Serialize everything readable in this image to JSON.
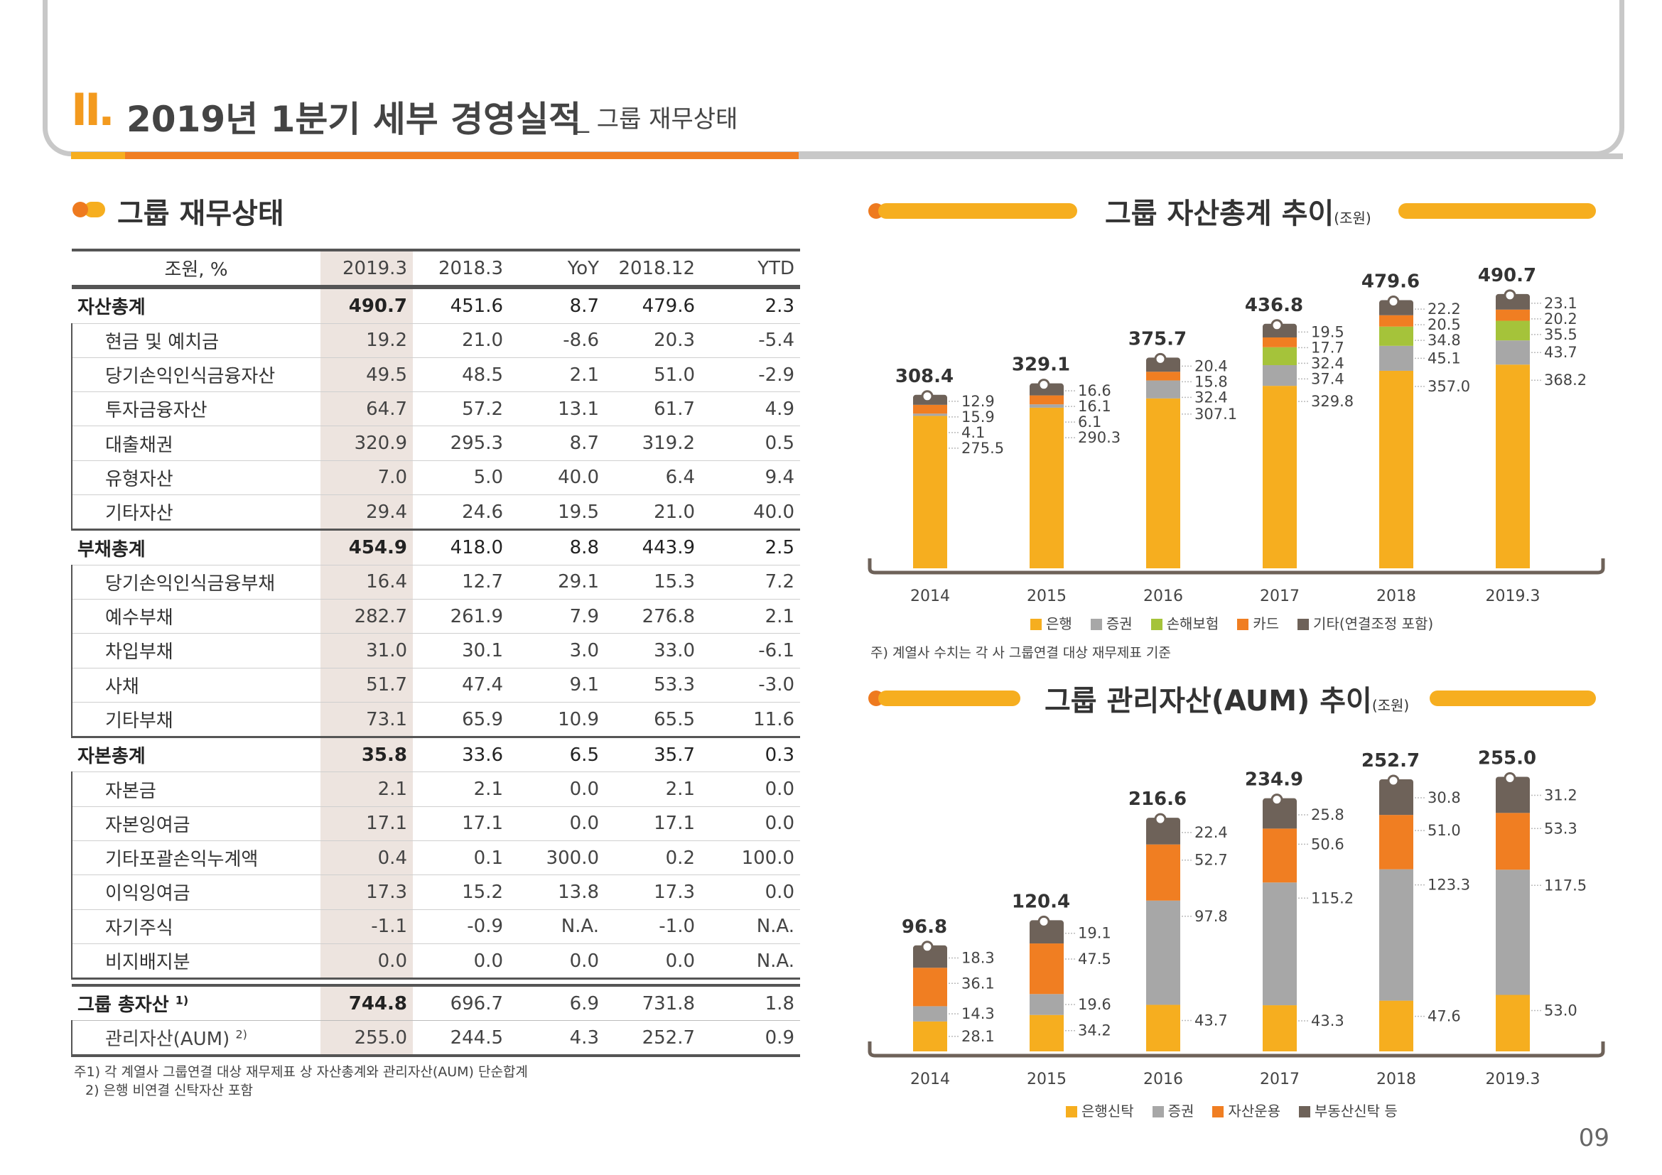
{
  "header": {
    "roman": "II.",
    "title": "2019년 1분기 세부 경영실적",
    "subtitle": "_ 그룹 재무상태",
    "page_number": "09"
  },
  "left": {
    "section_title": "그룹 재무상태",
    "columns": [
      "조원, %",
      "2019.3",
      "2018.3",
      "YoY",
      "2018.12",
      "YTD"
    ],
    "rows": [
      {
        "label": "자산총계",
        "group": true,
        "values": [
          "490.7",
          "451.6",
          "8.7",
          "479.6",
          "2.3"
        ]
      },
      {
        "label": "현금 및 예치금",
        "values": [
          "19.2",
          "21.0",
          "-8.6",
          "20.3",
          "-5.4"
        ]
      },
      {
        "label": "당기손익인식금융자산",
        "values": [
          "49.5",
          "48.5",
          "2.1",
          "51.0",
          "-2.9"
        ]
      },
      {
        "label": "투자금융자산",
        "values": [
          "64.7",
          "57.2",
          "13.1",
          "61.7",
          "4.9"
        ]
      },
      {
        "label": "대출채권",
        "values": [
          "320.9",
          "295.3",
          "8.7",
          "319.2",
          "0.5"
        ]
      },
      {
        "label": "유형자산",
        "values": [
          "7.0",
          "5.0",
          "40.0",
          "6.4",
          "9.4"
        ]
      },
      {
        "label": "기타자산",
        "values": [
          "29.4",
          "24.6",
          "19.5",
          "21.0",
          "40.0"
        ]
      },
      {
        "label": "부채총계",
        "group": true,
        "values": [
          "454.9",
          "418.0",
          "8.8",
          "443.9",
          "2.5"
        ]
      },
      {
        "label": "당기손익인식금융부채",
        "values": [
          "16.4",
          "12.7",
          "29.1",
          "15.3",
          "7.2"
        ]
      },
      {
        "label": "예수부채",
        "values": [
          "282.7",
          "261.9",
          "7.9",
          "276.8",
          "2.1"
        ]
      },
      {
        "label": "차입부채",
        "values": [
          "31.0",
          "30.1",
          "3.0",
          "33.0",
          "-6.1"
        ]
      },
      {
        "label": "사채",
        "values": [
          "51.7",
          "47.4",
          "9.1",
          "53.3",
          "-3.0"
        ]
      },
      {
        "label": "기타부채",
        "values": [
          "73.1",
          "65.9",
          "10.9",
          "65.5",
          "11.6"
        ]
      },
      {
        "label": "자본총계",
        "group": true,
        "values": [
          "35.8",
          "33.6",
          "6.5",
          "35.7",
          "0.3"
        ]
      },
      {
        "label": "자본금",
        "values": [
          "2.1",
          "2.1",
          "0.0",
          "2.1",
          "0.0"
        ]
      },
      {
        "label": "자본잉여금",
        "values": [
          "17.1",
          "17.1",
          "0.0",
          "17.1",
          "0.0"
        ]
      },
      {
        "label": "기타포괄손익누계액",
        "values": [
          "0.4",
          "0.1",
          "300.0",
          "0.2",
          "100.0"
        ]
      },
      {
        "label": "이익잉여금",
        "values": [
          "17.3",
          "15.2",
          "13.8",
          "17.3",
          "0.0"
        ]
      },
      {
        "label": "자기주식",
        "values": [
          "-1.1",
          "-0.9",
          "N.A.",
          "-1.0",
          "N.A."
        ]
      },
      {
        "label": "비지배지분",
        "values": [
          "0.0",
          "0.0",
          "0.0",
          "0.0",
          "N.A."
        ]
      }
    ],
    "totals": [
      {
        "label": "그룹 총자산",
        "sup": "1)",
        "values": [
          "744.8",
          "696.7",
          "6.9",
          "731.8",
          "1.8"
        ]
      },
      {
        "label": "관리자산(AUM)",
        "sup": "2)",
        "values": [
          "255.0",
          "244.5",
          "4.3",
          "252.7",
          "0.9"
        ]
      }
    ],
    "notes": [
      "주1) 각 계열사 그룹연결 대상 재무제표 상 자산총계와 관리자산(AUM) 단순합계",
      "2) 은행 비연결 신탁자산 포함"
    ]
  },
  "colors": {
    "bank": "#f6ae1f",
    "securities": "#a7a7a7",
    "insurance": "#a5c33a",
    "card": "#f07e22",
    "other": "#6e6259",
    "accent": "#f39a1e",
    "table_highlight": "#ede4df"
  },
  "chart_data": [
    {
      "type": "bar",
      "stacked": true,
      "title": "그룹 자산총계 추이",
      "unit": "(조원)",
      "categories": [
        "2014",
        "2015",
        "2016",
        "2017",
        "2018",
        "2019.3"
      ],
      "totals": [
        "308.4",
        "329.1",
        "375.7",
        "436.8",
        "479.6",
        "490.7"
      ],
      "series": [
        {
          "name": "은행",
          "color": "#f6ae1f",
          "values": [
            275.5,
            290.3,
            307.1,
            329.8,
            357.0,
            368.2
          ]
        },
        {
          "name": "증권",
          "color": "#a7a7a7",
          "values": [
            4.1,
            6.1,
            32.4,
            37.4,
            45.1,
            43.7
          ]
        },
        {
          "name": "손해보험",
          "color": "#a5c33a",
          "values": [
            0,
            0,
            0,
            32.4,
            34.8,
            35.5
          ]
        },
        {
          "name": "카드",
          "color": "#f07e22",
          "values": [
            15.9,
            16.1,
            15.8,
            17.7,
            20.5,
            20.2
          ]
        },
        {
          "name": "기타(연결조정 포함)",
          "color": "#6e6259",
          "values": [
            12.9,
            16.6,
            20.4,
            19.5,
            22.2,
            23.1
          ]
        }
      ],
      "labels": [
        [
          "12.9",
          "15.9",
          "4.1",
          "275.5"
        ],
        [
          "16.6",
          "16.1",
          "6.1",
          "290.3"
        ],
        [
          "20.4",
          "15.8",
          "32.4",
          "307.1"
        ],
        [
          "19.5",
          "17.7",
          "32.4",
          "37.4",
          "329.8"
        ],
        [
          "22.2",
          "20.5",
          "34.8",
          "45.1",
          "357.0"
        ],
        [
          "23.1",
          "20.2",
          "35.5",
          "43.7",
          "368.2"
        ]
      ],
      "ylim": [
        0,
        520
      ],
      "note": "주) 계열사 수치는 각 사 그룹연결 대상 재무제표 기준"
    },
    {
      "type": "bar",
      "stacked": true,
      "title": "그룹 관리자산(AUM) 추이",
      "unit": "(조원)",
      "categories": [
        "2014",
        "2015",
        "2016",
        "2017",
        "2018",
        "2019.3"
      ],
      "totals": [
        "96.8",
        "120.4",
        "216.6",
        "234.9",
        "252.7",
        "255.0"
      ],
      "series": [
        {
          "name": "은행신탁",
          "color": "#f6ae1f",
          "values": [
            28.1,
            34.2,
            43.7,
            43.3,
            47.6,
            53.0
          ]
        },
        {
          "name": "증권",
          "color": "#a7a7a7",
          "values": [
            14.3,
            19.6,
            97.8,
            115.2,
            123.3,
            117.5
          ]
        },
        {
          "name": "자산운용",
          "color": "#f07e22",
          "values": [
            36.1,
            47.5,
            52.7,
            50.6,
            51.0,
            53.3
          ]
        },
        {
          "name": "부동산신탁 등",
          "color": "#6e6259",
          "values": [
            18.3,
            19.1,
            22.4,
            25.8,
            30.8,
            31.2
          ]
        }
      ],
      "labels": [
        [
          "18.3",
          "36.1",
          "14.3",
          "28.1"
        ],
        [
          "19.1",
          "47.5",
          "19.6",
          "34.2"
        ],
        [
          "22.4",
          "52.7",
          "97.8",
          "43.7"
        ],
        [
          "25.8",
          "50.6",
          "115.2",
          "43.3"
        ],
        [
          "30.8",
          "51.0",
          "123.3",
          "47.6"
        ],
        [
          "31.2",
          "53.3",
          "117.5",
          "53.0"
        ]
      ],
      "ylim": [
        0,
        270
      ]
    }
  ]
}
